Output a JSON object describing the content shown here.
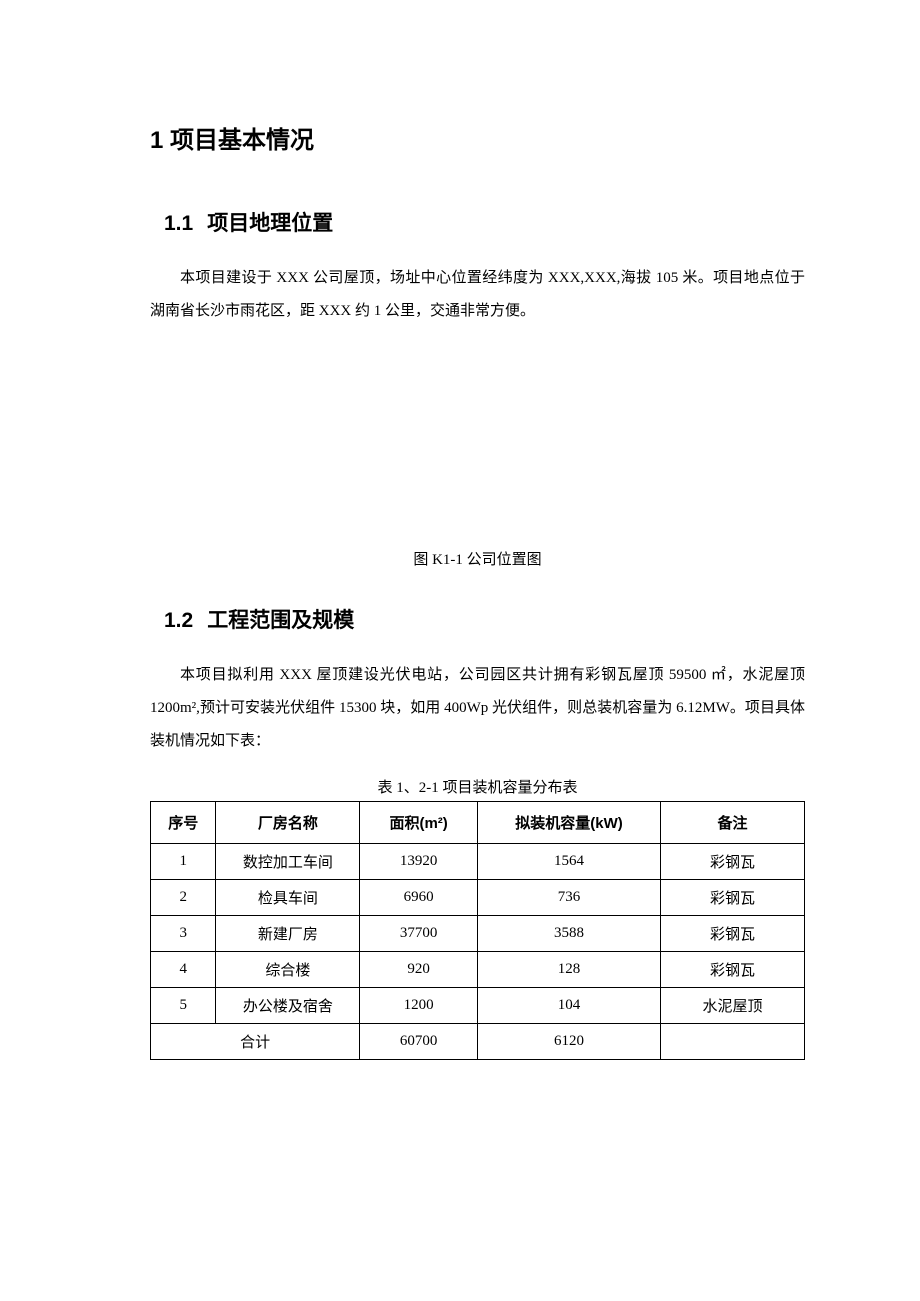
{
  "heading1": "1 项目基本情况",
  "section1": {
    "num": "1.1",
    "title": "项目地理位置",
    "para": "本项目建设于 XXX 公司屋顶，场址中心位置经纬度为 XXX,XXX,海拔 105 米。项目地点位于湖南省长沙市雨花区，距 XXX 约 1 公里，交通非常方便。"
  },
  "figure_caption": "图 K1-1 公司位置图",
  "section2": {
    "num": "1.2",
    "title": "工程范围及规模",
    "para": "本项目拟利用 XXX 屋顶建设光伏电站，公司园区共计拥有彩钢瓦屋顶 59500 ㎡，水泥屋顶 1200m²,预计可安装光伏组件 15300 块，如用 400Wp 光伏组件，则总装机容量为 6.12MW。项目具体装机情况如下表："
  },
  "table": {
    "caption": "表 1、2-1 项目装机容量分布表",
    "columns": {
      "seq": "序号",
      "name": "厂房名称",
      "area": "面积(m²)",
      "capacity": "拟装机容量(kW)",
      "note": "备注"
    },
    "rows": [
      {
        "seq": "1",
        "name": "数控加工车间",
        "area": "13920",
        "capacity": "1564",
        "note": "彩钢瓦"
      },
      {
        "seq": "2",
        "name": "检具车间",
        "area": "6960",
        "capacity": "736",
        "note": "彩钢瓦"
      },
      {
        "seq": "3",
        "name": "新建厂房",
        "area": "37700",
        "capacity": "3588",
        "note": "彩钢瓦"
      },
      {
        "seq": "4",
        "name": "综合楼",
        "area": "920",
        "capacity": "128",
        "note": "彩钢瓦"
      },
      {
        "seq": "5",
        "name": "办公楼及宿舍",
        "area": "1200",
        "capacity": "104",
        "note": "水泥屋顶"
      }
    ],
    "total": {
      "label": "合计",
      "area": "60700",
      "capacity": "6120",
      "note": ""
    }
  },
  "colors": {
    "text": "#000000",
    "background": "#ffffff",
    "border": "#000000"
  },
  "fonts": {
    "heading": "SimHei",
    "body": "SimSun",
    "h1_size": 24,
    "h2_size": 21,
    "body_size": 15
  }
}
